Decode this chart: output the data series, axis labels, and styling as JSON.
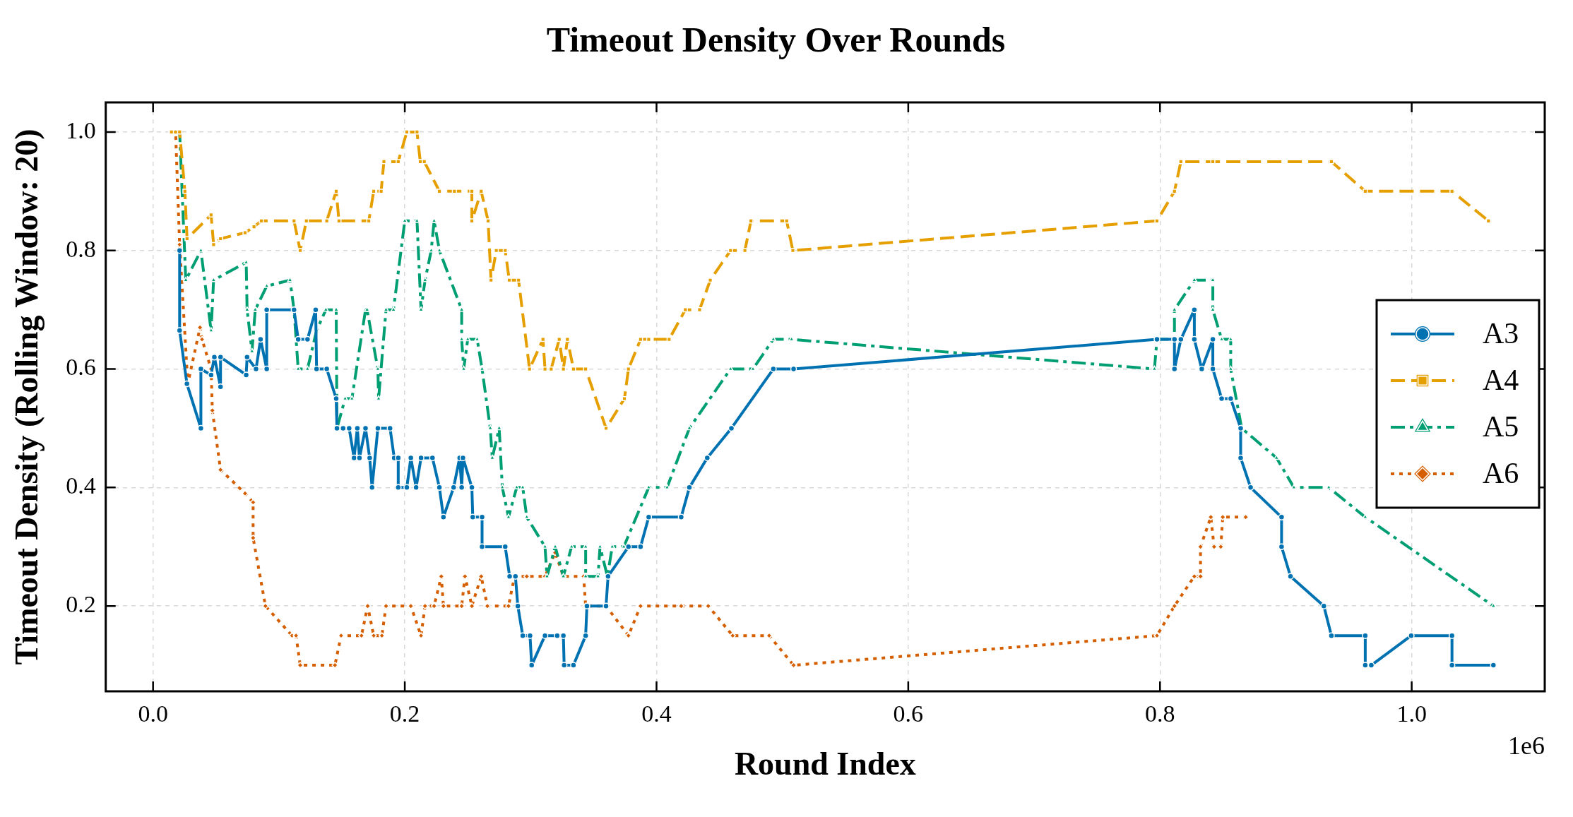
{
  "chart_data": {
    "type": "line",
    "title": "Timeout Density Over Rounds",
    "xlabel": "Round Index",
    "ylabel": "Timeout Density (Rolling Window: 20)",
    "xlim": [
      -0.0376,
      1.1057
    ],
    "ylim": [
      0.056,
      1.05
    ],
    "xticks": [
      {
        "value": 0,
        "label": "0.0"
      },
      0.2,
      0.4,
      0.6,
      0.8,
      {
        "value": 1.0,
        "label": "1.0"
      }
    ],
    "yticks": [
      0.2,
      0.4,
      0.6,
      0.8,
      {
        "value": 1.0,
        "label": "1.0"
      }
    ],
    "grid": true,
    "legend": "right",
    "annotations": [
      "1e6"
    ],
    "series": [
      {
        "name": "A3",
        "color": "#0072b2",
        "marker": "circle",
        "line_style": "solid",
        "x": [
          0.0211,
          0.0211,
          0.0269,
          0.038,
          0.038,
          0.0461,
          0.0487,
          0.0536,
          0.0536,
          0.074,
          0.0747,
          0.0818,
          0.0854,
          0.0903,
          0.0903,
          0.112,
          0.1153,
          0.1227,
          0.1292,
          0.1299,
          0.138,
          0.1455,
          0.1461,
          0.151,
          0.1558,
          0.1597,
          0.1623,
          0.164,
          0.1688,
          0.1721,
          0.174,
          0.1786,
          0.1883,
          0.1916,
          0.1948,
          0.1948,
          0.2016,
          0.2048,
          0.209,
          0.2129,
          0.222,
          0.2275,
          0.2307,
          0.2388,
          0.2436,
          0.2452,
          0.2462,
          0.2533,
          0.254,
          0.2614,
          0.2614,
          0.2798,
          0.2833,
          0.2879,
          0.2898,
          0.2937,
          0.2995,
          0.3008,
          0.3114,
          0.3211,
          0.326,
          0.3266,
          0.334,
          0.3437,
          0.3447,
          0.3599,
          0.3615,
          0.3777,
          0.3873,
          0.3938,
          0.4196,
          0.4261,
          0.4403,
          0.4595,
          0.4928,
          0.5089,
          0.7976,
          0.8115,
          0.8115,
          0.8166,
          0.8273,
          0.8273,
          0.8332,
          0.842,
          0.842,
          0.849,
          0.8562,
          0.8641,
          0.8641,
          0.872,
          0.8966,
          0.8966,
          0.9037,
          0.9302,
          0.9362,
          0.9631,
          0.9631,
          0.9679,
          0.9996,
          1.032,
          1.032,
          1.0649
        ],
        "values": [
          0.8,
          0.665,
          0.575,
          0.5,
          0.6,
          0.59,
          0.62,
          0.57,
          0.62,
          0.59,
          0.62,
          0.6,
          0.65,
          0.6,
          0.7,
          0.7,
          0.65,
          0.65,
          0.7,
          0.6,
          0.6,
          0.55,
          0.5,
          0.5,
          0.5,
          0.45,
          0.5,
          0.45,
          0.5,
          0.45,
          0.4,
          0.5,
          0.5,
          0.45,
          0.45,
          0.4,
          0.4,
          0.45,
          0.4,
          0.45,
          0.45,
          0.4,
          0.35,
          0.4,
          0.45,
          0.4,
          0.45,
          0.4,
          0.35,
          0.35,
          0.3,
          0.3,
          0.25,
          0.25,
          0.2,
          0.15,
          0.15,
          0.1,
          0.15,
          0.15,
          0.15,
          0.1,
          0.1,
          0.15,
          0.2,
          0.2,
          0.25,
          0.3,
          0.3,
          0.35,
          0.35,
          0.4,
          0.45,
          0.5,
          0.6,
          0.6,
          0.65,
          0.65,
          0.6,
          0.65,
          0.7,
          0.65,
          0.6,
          0.65,
          0.6,
          0.55,
          0.55,
          0.5,
          0.45,
          0.4,
          0.35,
          0.3,
          0.25,
          0.2,
          0.15,
          0.15,
          0.1,
          0.1,
          0.15,
          0.15,
          0.1,
          0.1
        ]
      },
      {
        "name": "A4",
        "color": "#e69f00",
        "marker": "square",
        "line_style": "dashed",
        "x": [
          0.0146,
          0.0211,
          0.0253,
          0.027,
          0.0461,
          0.0481,
          0.0536,
          0.0731,
          0.0802,
          0.086,
          0.112,
          0.1169,
          0.1218,
          0.138,
          0.1455,
          0.1477,
          0.1714,
          0.1753,
          0.1812,
          0.1834,
          0.1948,
          0.2016,
          0.2097,
          0.2123,
          0.2155,
          0.2275,
          0.2394,
          0.2533,
          0.2533,
          0.2607,
          0.2662,
          0.2685,
          0.2727,
          0.2798,
          0.283,
          0.2904,
          0.2991,
          0.3098,
          0.3114,
          0.3163,
          0.3227,
          0.326,
          0.3292,
          0.334,
          0.3437,
          0.3599,
          0.3745,
          0.3777,
          0.3873,
          0.3938,
          0.41,
          0.4229,
          0.4342,
          0.4427,
          0.4588,
          0.4702,
          0.475,
          0.5034,
          0.5083,
          0.7976,
          0.8115,
          0.8166,
          0.842,
          0.9362,
          0.9631,
          1.032,
          1.061
        ],
        "values": [
          1.0,
          1.0,
          0.9,
          0.82,
          0.86,
          0.81,
          0.82,
          0.83,
          0.84,
          0.85,
          0.85,
          0.8,
          0.85,
          0.85,
          0.9,
          0.85,
          0.85,
          0.9,
          0.9,
          0.95,
          0.95,
          1.0,
          1.0,
          0.95,
          0.95,
          0.9,
          0.9,
          0.9,
          0.85,
          0.9,
          0.85,
          0.75,
          0.8,
          0.8,
          0.75,
          0.75,
          0.6,
          0.65,
          0.6,
          0.6,
          0.65,
          0.6,
          0.65,
          0.6,
          0.6,
          0.5,
          0.55,
          0.6,
          0.65,
          0.65,
          0.65,
          0.7,
          0.7,
          0.75,
          0.8,
          0.8,
          0.85,
          0.85,
          0.8,
          0.85,
          0.9,
          0.95,
          0.95,
          0.95,
          0.9,
          0.9,
          0.85
        ]
      },
      {
        "name": "A5",
        "color": "#009e73",
        "marker": "triangle",
        "line_style": "dashdot",
        "x": [
          0.0179,
          0.0211,
          0.026,
          0.038,
          0.0461,
          0.0481,
          0.074,
          0.0747,
          0.0786,
          0.0812,
          0.0903,
          0.1088,
          0.112,
          0.1153,
          0.1227,
          0.1299,
          0.1373,
          0.1455,
          0.1461,
          0.1526,
          0.158,
          0.1688,
          0.17,
          0.1786,
          0.1792,
          0.1851,
          0.191,
          0.2,
          0.2097,
          0.2129,
          0.2161,
          0.221,
          0.2233,
          0.2275,
          0.2452,
          0.2452,
          0.2468,
          0.25,
          0.2575,
          0.2614,
          0.2679,
          0.2695,
          0.275,
          0.2775,
          0.2824,
          0.2889,
          0.2937,
          0.2969,
          0.3114,
          0.313,
          0.3195,
          0.326,
          0.3325,
          0.3437,
          0.3437,
          0.3535,
          0.3551,
          0.361,
          0.3648,
          0.374,
          0.3938,
          0.4084,
          0.4261,
          0.4588,
          0.4766,
          0.4928,
          0.5073,
          0.7956,
          0.7976,
          0.8115,
          0.8115,
          0.8273,
          0.842,
          0.842,
          0.849,
          0.8562,
          0.8562,
          0.8649,
          0.8926,
          0.9064,
          0.9341,
          0.9631,
          1.0649
        ],
        "values": [
          1.0,
          1.0,
          0.75,
          0.8,
          0.665,
          0.75,
          0.78,
          0.7,
          0.63,
          0.7,
          0.74,
          0.75,
          0.7,
          0.6,
          0.6,
          0.665,
          0.7,
          0.7,
          0.5,
          0.55,
          0.55,
          0.7,
          0.7,
          0.6,
          0.55,
          0.7,
          0.7,
          0.85,
          0.85,
          0.7,
          0.75,
          0.8,
          0.85,
          0.8,
          0.7,
          0.65,
          0.6,
          0.65,
          0.65,
          0.6,
          0.5,
          0.45,
          0.5,
          0.4,
          0.35,
          0.4,
          0.4,
          0.35,
          0.3,
          0.25,
          0.3,
          0.25,
          0.3,
          0.3,
          0.25,
          0.25,
          0.3,
          0.25,
          0.3,
          0.3,
          0.4,
          0.4,
          0.5,
          0.6,
          0.6,
          0.65,
          0.65,
          0.6,
          0.65,
          0.65,
          0.7,
          0.75,
          0.75,
          0.7,
          0.65,
          0.65,
          0.6,
          0.5,
          0.45,
          0.4,
          0.4,
          0.35,
          0.2
        ]
      },
      {
        "name": "A6",
        "color": "#d55e00",
        "marker": "diamond",
        "line_style": "dotted",
        "x": [
          0.0146,
          0.0179,
          0.0211,
          0.0276,
          0.0373,
          0.0389,
          0.0461,
          0.0471,
          0.0536,
          0.0731,
          0.0795,
          0.0795,
          0.0893,
          0.1104,
          0.1136,
          0.1169,
          0.1445,
          0.1494,
          0.1656,
          0.1705,
          0.1753,
          0.1818,
          0.1851,
          0.2048,
          0.2129,
          0.2161,
          0.2233,
          0.229,
          0.2307,
          0.2452,
          0.2478,
          0.2533,
          0.2607,
          0.2656,
          0.2824,
          0.2872,
          0.2969,
          0.3114,
          0.3195,
          0.326,
          0.3421,
          0.3437,
          0.3599,
          0.3777,
          0.3873,
          0.4196,
          0.4411,
          0.4605,
          0.4895,
          0.5089,
          0.7976,
          0.8115,
          0.8273,
          0.8322,
          0.8322,
          0.8404,
          0.843,
          0.8483,
          0.8499,
          0.8681
        ],
        "values": [
          1.0,
          1.0,
          0.81,
          0.575,
          0.67,
          0.65,
          0.6,
          0.53,
          0.43,
          0.39,
          0.375,
          0.315,
          0.2,
          0.15,
          0.15,
          0.1,
          0.1,
          0.15,
          0.15,
          0.2,
          0.15,
          0.15,
          0.2,
          0.2,
          0.15,
          0.2,
          0.2,
          0.25,
          0.2,
          0.2,
          0.25,
          0.2,
          0.25,
          0.2,
          0.2,
          0.25,
          0.25,
          0.25,
          0.29,
          0.25,
          0.25,
          0.2,
          0.2,
          0.15,
          0.2,
          0.2,
          0.2,
          0.15,
          0.15,
          0.1,
          0.15,
          0.2,
          0.25,
          0.25,
          0.3,
          0.35,
          0.3,
          0.3,
          0.35,
          0.35
        ]
      }
    ]
  }
}
